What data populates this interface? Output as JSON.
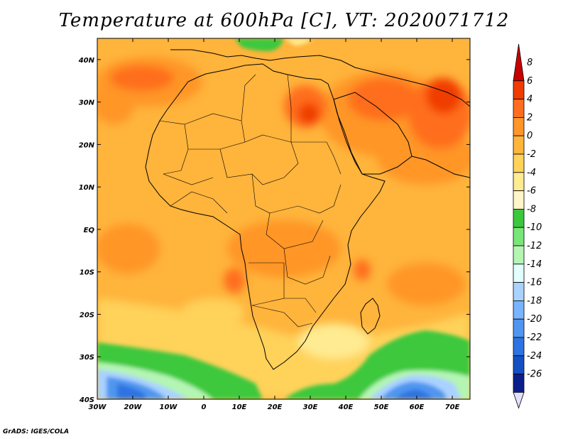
{
  "title": "Temperature at 600hPa [C], VT: 2020071712",
  "credit": "GrADS: IGES/COLA",
  "map": {
    "projection": "lat-lon",
    "lon_range": [
      -30,
      75
    ],
    "lat_range": [
      -40,
      45
    ],
    "field": "temperature",
    "units": "C",
    "lon_ticks": [
      "30W",
      "20W",
      "10W",
      "0",
      "10E",
      "20E",
      "30E",
      "40E",
      "50E",
      "60E",
      "70E"
    ],
    "lat_ticks": [
      "40S",
      "30S",
      "20S",
      "10S",
      "EQ",
      "10N",
      "20N",
      "30N",
      "40N"
    ]
  },
  "colorbar": {
    "labels": [
      "8",
      "6",
      "4",
      "2",
      "0",
      "-2",
      "-4",
      "-6",
      "-8",
      "-10",
      "-12",
      "-14",
      "-16",
      "-18",
      "-20",
      "-22",
      "-24",
      "-26"
    ],
    "colors": [
      "#c80000",
      "#f03c00",
      "#ff6e1e",
      "#ff9628",
      "#ffb43c",
      "#ffd25a",
      "#ffeb91",
      "#fff5c8",
      "#3cc83c",
      "#78e678",
      "#b4f5b4",
      "#e1ffff",
      "#aad2ff",
      "#78b4ff",
      "#5096f0",
      "#2d73e1",
      "#1450c3",
      "#0a1e8c",
      "#e1e1ff"
    ]
  }
}
